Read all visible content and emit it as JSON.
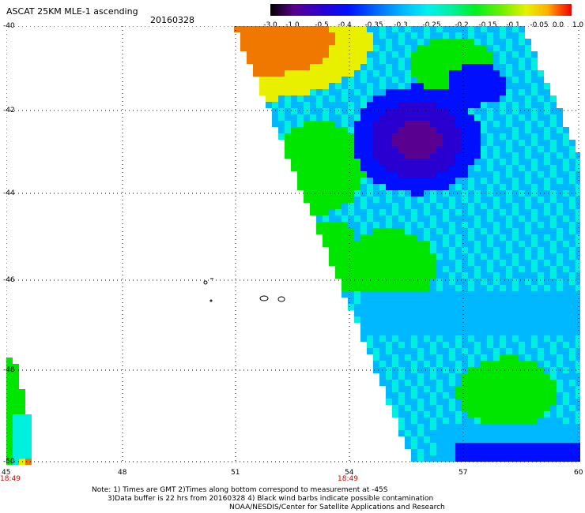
{
  "header": {
    "title": "ASCAT 25KM MLE-1 ascending",
    "date": "20160328"
  },
  "colorbar": {
    "labels": [
      "-3.0",
      "-1.0",
      "-0.5",
      "-0.4",
      "-0.35",
      "-0.3",
      "-0.25",
      "-0.2",
      "-0.15",
      "-0.1",
      "-0.05",
      "0.0",
      "1.0"
    ],
    "colors": [
      "#000000",
      "#5a0090",
      "#2a00d0",
      "#0010ff",
      "#0070ff",
      "#00b8ff",
      "#00f0f0",
      "#00f0a0",
      "#00f020",
      "#70f000",
      "#e8f000",
      "#ffb000",
      "#ff5000",
      "#f00000"
    ]
  },
  "map": {
    "y_labels": [
      "-40",
      "-42",
      "-44",
      "-46",
      "-48",
      "-50"
    ],
    "x_labels": [
      "45",
      "48",
      "51",
      "54",
      "57",
      "60"
    ],
    "pass_times": [
      "18:49",
      "18:49"
    ]
  },
  "footer": {
    "note_line1": "Note: 1) Times are GMT 2)Times along bottom correspond to measurement at -45S",
    "note_line2": "       3)Data buffer is 22 hrs from 20160328 4) Black wind barbs indicate possible contamination",
    "credit": "NOAA/NESDIS/Center for Satellite Applications and Research"
  },
  "legend_colors": {
    "orange": "#f07800",
    "yellow": "#e8f000",
    "green": "#00e600",
    "cyan": "#00f0e0",
    "lightblue": "#00b8ff",
    "blue": "#0010ff",
    "navy": "#2a00d0",
    "purple": "#5a0090"
  }
}
